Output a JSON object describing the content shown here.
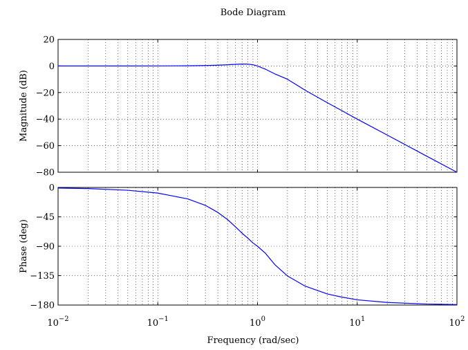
{
  "chart_data": {
    "type": "line",
    "title": "Bode Diagram",
    "xlabel": "Frequency  (rad/sec)",
    "x_scale": "log",
    "xlim": [
      0.01,
      100
    ],
    "x_ticks": [
      {
        "value": 0.01,
        "base": "10",
        "exp": "−2"
      },
      {
        "value": 0.1,
        "base": "10",
        "exp": "−1"
      },
      {
        "value": 1,
        "base": "10",
        "exp": "0"
      },
      {
        "value": 10,
        "base": "10",
        "exp": "1"
      },
      {
        "value": 100,
        "base": "10",
        "exp": "2"
      }
    ],
    "grid": true,
    "line_color": "#0000ff",
    "panels": [
      {
        "name": "magnitude",
        "ylabel": "Magnitude (dB)",
        "ylim": [
          -80,
          20
        ],
        "y_ticks": [
          20,
          0,
          -20,
          -40,
          -60,
          -80
        ],
        "y_tick_labels": [
          "20",
          "0",
          "−20",
          "−40",
          "−60",
          "−80"
        ],
        "series": [
          {
            "x": [
              0.01,
              0.02,
              0.05,
              0.1,
              0.2,
              0.3,
              0.4,
              0.5,
              0.6,
              0.7,
              0.75,
              0.8,
              0.9,
              1,
              1.2,
              1.5,
              2,
              3,
              5,
              7,
              10,
              20,
              50,
              100
            ],
            "y": [
              0,
              0,
              0.01,
              0.04,
              0.15,
              0.34,
              0.61,
              0.93,
              1.25,
              1.44,
              1.46,
              1.4,
              0.94,
              0,
              -2.39,
              -6.03,
              -10.0,
              -18.2,
              -27.6,
              -33.6,
              -40.0,
              -52.0,
              -68.0,
              -80.0
            ]
          }
        ]
      },
      {
        "name": "phase",
        "ylabel": "Phase (deg)",
        "ylim": [
          -180,
          0
        ],
        "y_ticks": [
          0,
          -45,
          -90,
          -135,
          -180
        ],
        "y_tick_labels": [
          "0",
          "−45",
          "−90",
          "−135",
          "−180"
        ],
        "series": [
          {
            "x": [
              0.01,
              0.02,
              0.05,
              0.1,
              0.2,
              0.3,
              0.4,
              0.5,
              0.6,
              0.7,
              0.8,
              0.9,
              1,
              1.2,
              1.5,
              2,
              3,
              5,
              7,
              10,
              20,
              50,
              100
            ],
            "y": [
              -0.9,
              -1.7,
              -4.3,
              -8.6,
              -17.5,
              -27.4,
              -38.2,
              -49.1,
              -60.1,
              -70.0,
              -77.6,
              -84.9,
              -90,
              -100.7,
              -118.5,
              -135.5,
              -151.0,
              -163.0,
              -167.8,
              -172.0,
              -176.0,
              -178.5,
              -179.3
            ]
          }
        ]
      }
    ]
  }
}
